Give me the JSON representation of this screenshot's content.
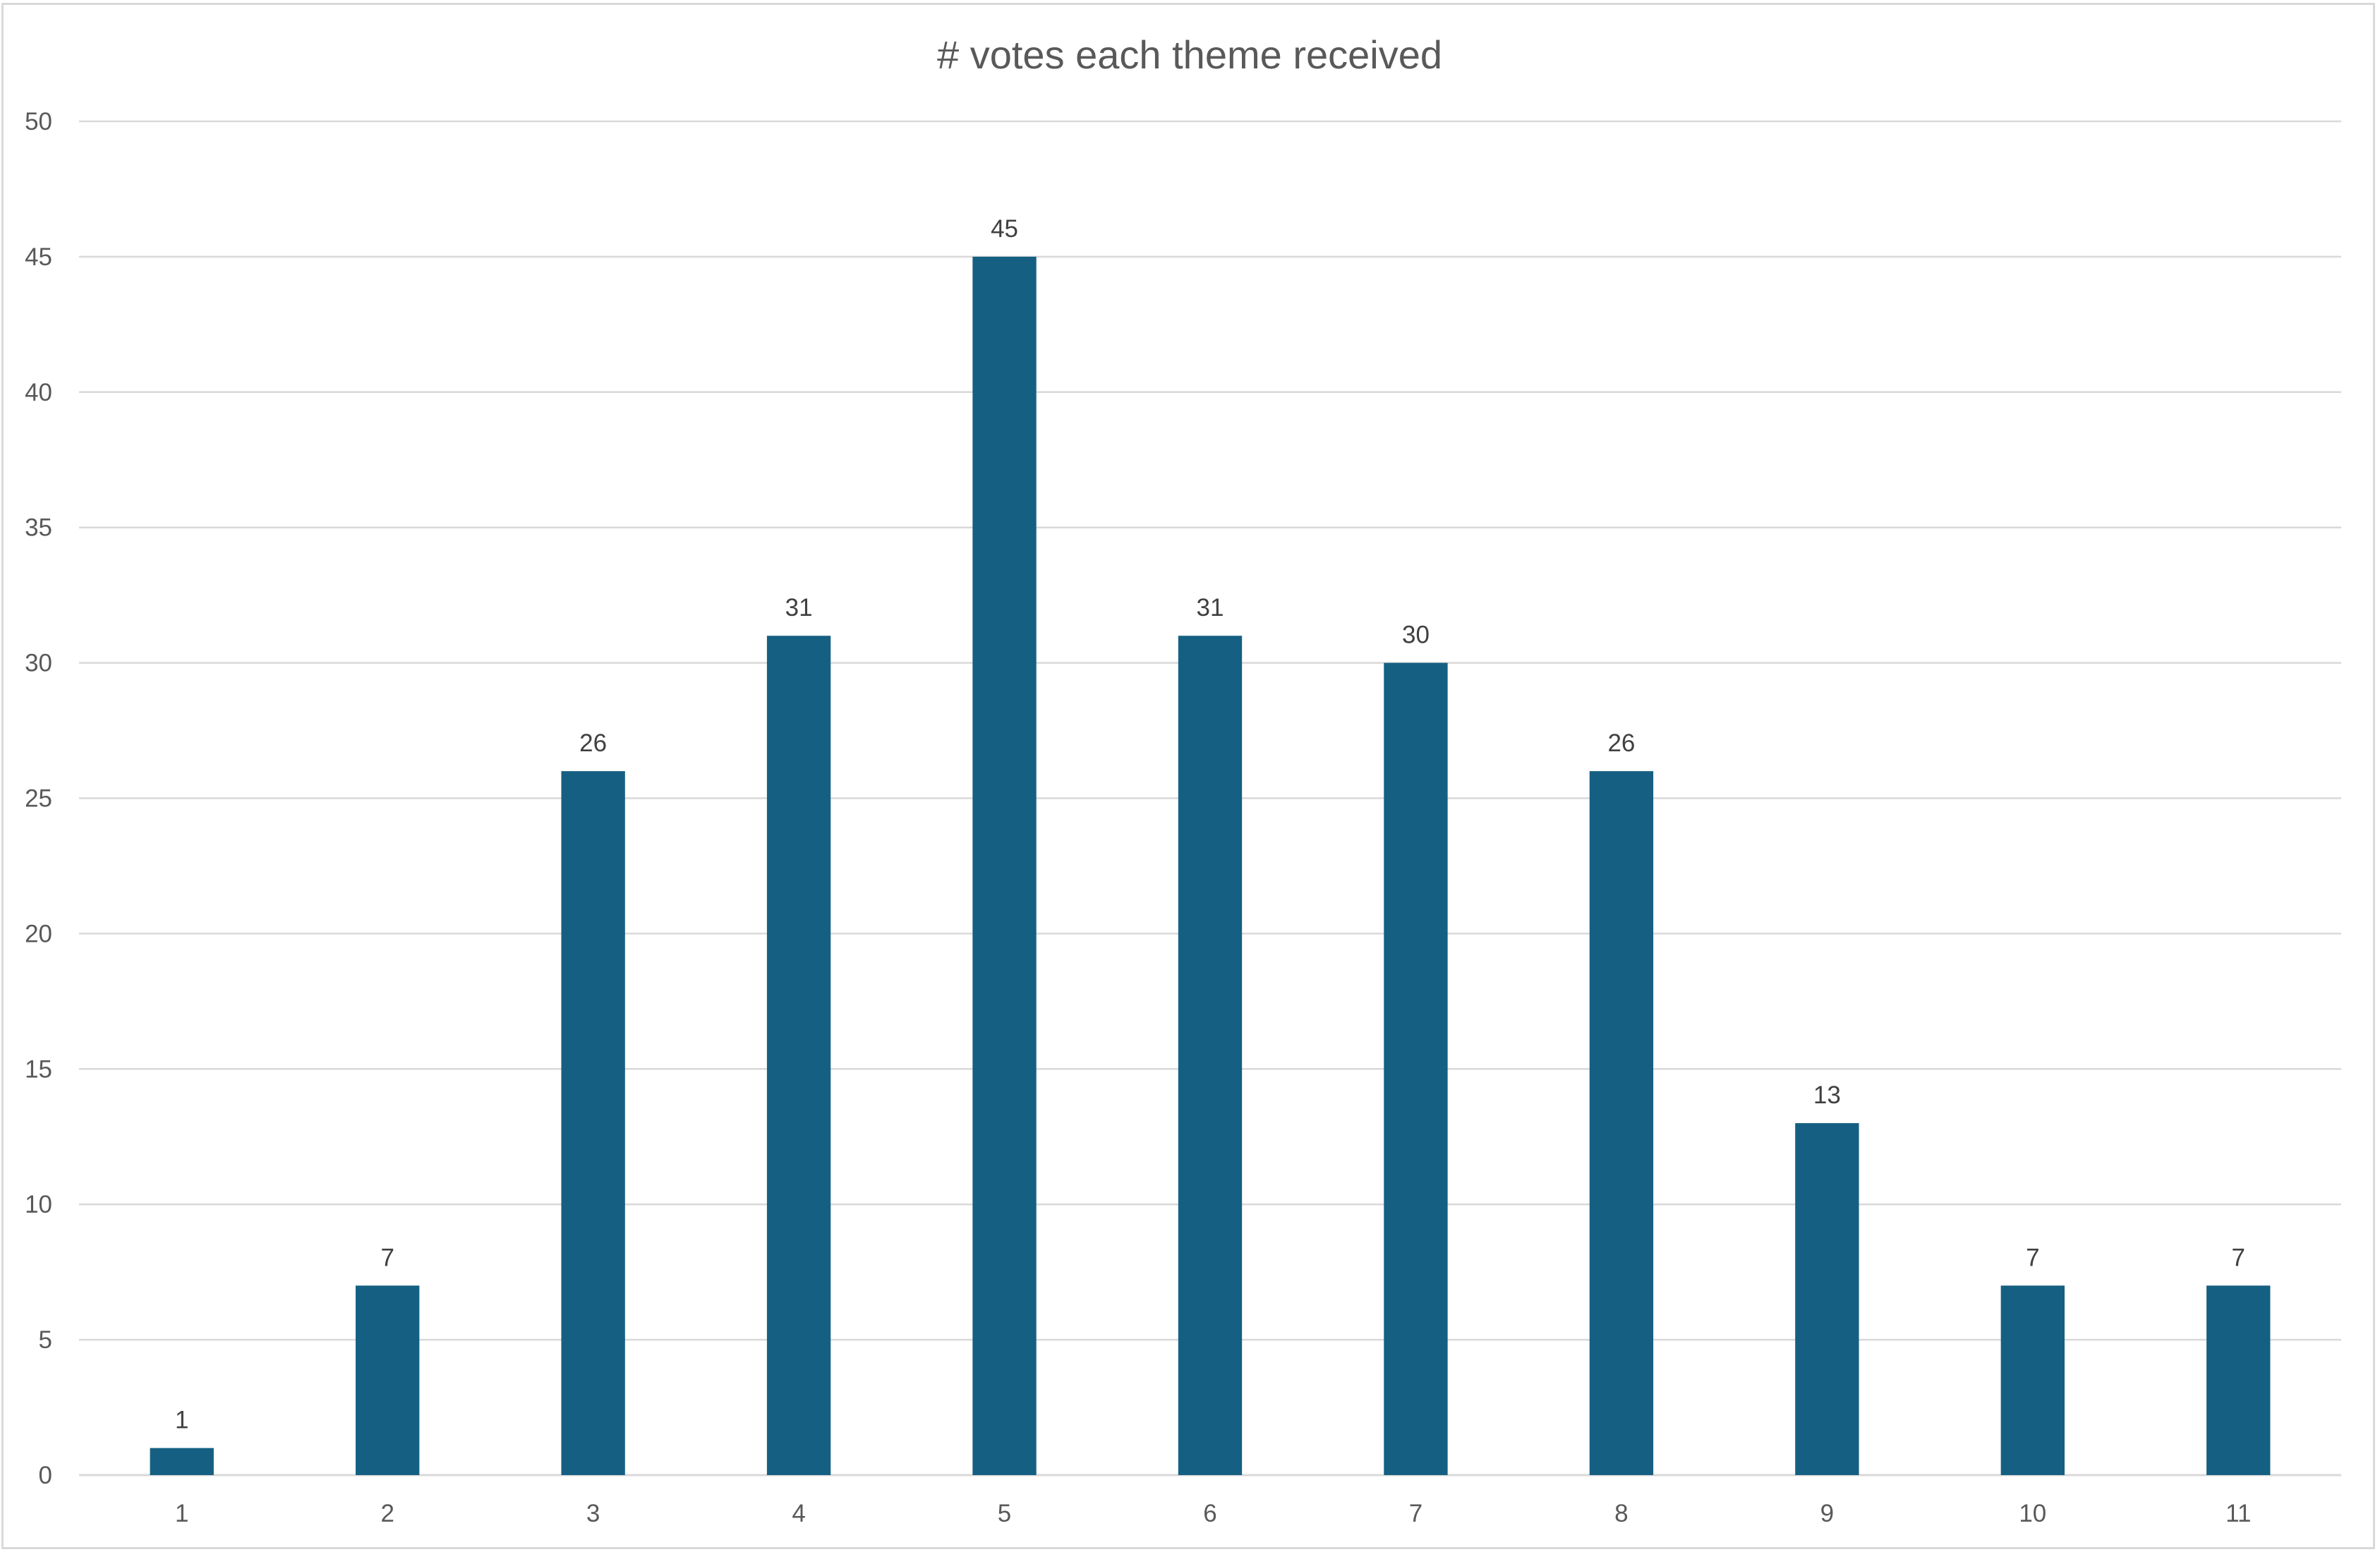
{
  "chart_data": {
    "type": "bar",
    "title": "# votes each theme received",
    "xlabel": "",
    "ylabel": "",
    "categories": [
      "1",
      "2",
      "3",
      "4",
      "5",
      "6",
      "7",
      "8",
      "9",
      "10",
      "11"
    ],
    "values": [
      1,
      7,
      26,
      31,
      45,
      31,
      30,
      26,
      13,
      7,
      7
    ],
    "ylim": [
      0,
      50
    ],
    "yticks": [
      "0",
      "5",
      "10",
      "15",
      "20",
      "25",
      "30",
      "35",
      "40",
      "45",
      "50"
    ],
    "grid": true,
    "data_labels": true,
    "legend": "none",
    "bar_color": "#156082",
    "grid_color": "#d9d9d9",
    "text_color": "#595959"
  }
}
